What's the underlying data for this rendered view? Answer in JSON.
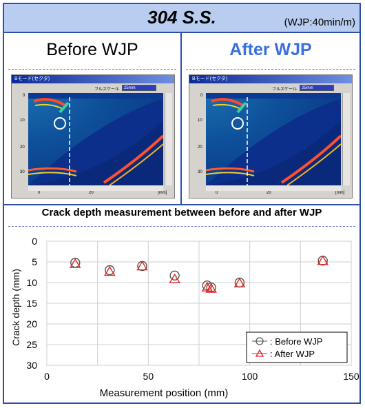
{
  "header": {
    "title": "304 S.S.",
    "condition": "(WJP:40min/m)"
  },
  "panels": {
    "before": {
      "label": "Before WJP",
      "window_title": "Bモード(セクタ)",
      "scale_label": "フルスケール",
      "scale_value": "25mm",
      "ticks_y": [
        "0",
        "10",
        "20",
        "30"
      ],
      "ticks_x": [
        "0",
        "20",
        "[mm]"
      ]
    },
    "after": {
      "label": "After WJP",
      "window_title": "Bモード(セクタ)",
      "scale_label": "フルスケール",
      "scale_value": "25mm",
      "ticks_y": [
        "0",
        "10",
        "20",
        "30"
      ],
      "ticks_x": [
        "0",
        "20",
        "[mm]"
      ]
    }
  },
  "colors": {
    "frame": "#2f4ea8",
    "header_bg": "#b9cdf1",
    "after_label": "#3a6fe0",
    "before_marker": "#555555",
    "after_marker": "#e02020"
  },
  "section": {
    "title": "Crack depth measurement between before and after WJP"
  },
  "chart_data": {
    "type": "scatter",
    "title": "",
    "xlabel": "Measurement position (mm)",
    "ylabel": "Crack depth (mm)",
    "xlim": [
      0,
      150
    ],
    "ylim": [
      0,
      30
    ],
    "y_inverted": true,
    "x_ticks": [
      0,
      50,
      100,
      150
    ],
    "y_ticks": [
      0,
      5,
      10,
      15,
      20,
      25,
      30
    ],
    "grid": true,
    "legend_position": "bottom-right",
    "series": [
      {
        "name": ": Before WJP",
        "marker": "circle",
        "color": "#555555",
        "points": [
          [
            14,
            5.2
          ],
          [
            31,
            7.0
          ],
          [
            47,
            6.0
          ],
          [
            63,
            8.3
          ],
          [
            79,
            10.7
          ],
          [
            81,
            11.2
          ],
          [
            95,
            10.0
          ],
          [
            136,
            4.7
          ]
        ]
      },
      {
        "name": ": After WJP",
        "marker": "triangle",
        "color": "#e02020",
        "points": [
          [
            14,
            5.5
          ],
          [
            31,
            7.4
          ],
          [
            47,
            6.1
          ],
          [
            63,
            9.2
          ],
          [
            79,
            11.2
          ],
          [
            81,
            11.5
          ],
          [
            95,
            10.2
          ],
          [
            136,
            4.8
          ]
        ]
      }
    ]
  }
}
